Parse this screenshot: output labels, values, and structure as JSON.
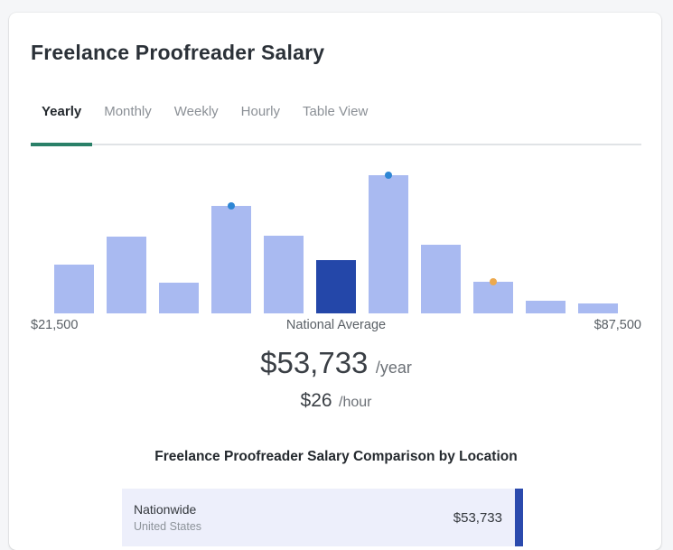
{
  "header": {
    "title": "Freelance Proofreader Salary"
  },
  "tabs": [
    {
      "label": "Yearly",
      "active": true
    },
    {
      "label": "Monthly",
      "active": false
    },
    {
      "label": "Weekly",
      "active": false
    },
    {
      "label": "Hourly",
      "active": false
    },
    {
      "label": "Table View",
      "active": false
    }
  ],
  "chart_data": {
    "type": "bar",
    "subtype": "salary-distribution-histogram",
    "x_min_label": "$21,500",
    "x_center_label": "National Average",
    "x_max_label": "$87,500",
    "ylim_pct": [
      0,
      100
    ],
    "bars": [
      {
        "height_pct": 35.3,
        "highlight": false
      },
      {
        "height_pct": 55.6,
        "highlight": false
      },
      {
        "height_pct": 22.2,
        "highlight": false
      },
      {
        "height_pct": 77.8,
        "highlight": false
      },
      {
        "height_pct": 56.2,
        "highlight": false
      },
      {
        "height_pct": 38.6,
        "highlight": true
      },
      {
        "height_pct": 100,
        "highlight": false
      },
      {
        "height_pct": 49.7,
        "highlight": false
      },
      {
        "height_pct": 22.9,
        "highlight": false
      },
      {
        "height_pct": 9.2,
        "highlight": false
      },
      {
        "height_pct": 7.2,
        "highlight": false
      }
    ],
    "markers": [
      {
        "bar_index": 3,
        "color": "blue"
      },
      {
        "bar_index": 6,
        "color": "blue"
      },
      {
        "bar_index": 8,
        "color": "orange"
      }
    ]
  },
  "salary": {
    "year_amount": "$53,733",
    "year_suffix": "/year",
    "hour_amount": "$26",
    "hour_suffix": "/hour"
  },
  "comparison": {
    "heading": "Freelance Proofreader Salary Comparison by Location",
    "rows": [
      {
        "location": "Nationwide",
        "region": "United States",
        "value": "$53,733"
      }
    ]
  },
  "colors": {
    "bar_light": "#a9baf1",
    "bar_dark": "#2447a9",
    "dot_blue": "#2e86d4",
    "dot_orange": "#eca94f",
    "tab_underline": "#2a8068",
    "comparison_bar": "#2b4aad",
    "row_background": "#edeffb"
  }
}
